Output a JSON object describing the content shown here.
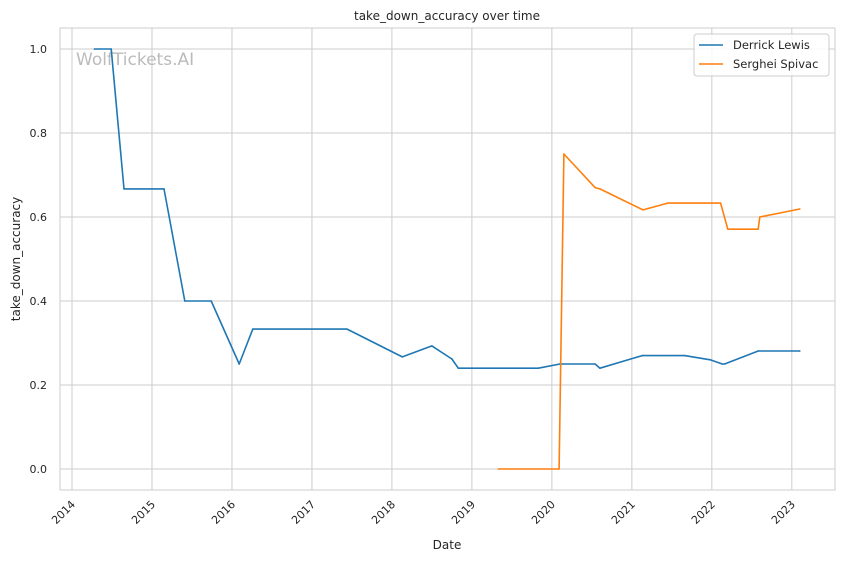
{
  "chart_data": {
    "type": "line",
    "title": "take_down_accuracy over time",
    "xlabel": "Date",
    "ylabel": "take_down_accuracy",
    "xlim": [
      2013.85,
      2023.54
    ],
    "ylim": [
      -0.05,
      1.05
    ],
    "x_ticks": [
      2014,
      2015,
      2016,
      2017,
      2018,
      2019,
      2020,
      2021,
      2022,
      2023
    ],
    "x_tick_labels": [
      "2014",
      "2015",
      "2016",
      "2017",
      "2018",
      "2019",
      "2020",
      "2021",
      "2022",
      "2023"
    ],
    "y_ticks": [
      0.0,
      0.2,
      0.4,
      0.6,
      0.8,
      1.0
    ],
    "y_tick_labels": [
      "0.0",
      "0.2",
      "0.4",
      "0.6",
      "0.8",
      "1.0"
    ],
    "grid": true,
    "legend_position": "top-right",
    "watermark": "WolfTickets.AI",
    "series": [
      {
        "name": "Derrick Lewis",
        "color": "#1f77b4",
        "x": [
          2014.28,
          2014.49,
          2014.65,
          2015.15,
          2015.41,
          2015.74,
          2016.09,
          2016.26,
          2017.44,
          2018.13,
          2018.5,
          2018.75,
          2018.83,
          2019.83,
          2020.1,
          2020.54,
          2020.6,
          2021.13,
          2021.66,
          2021.98,
          2022.13,
          2022.16,
          2022.58,
          2023.1
        ],
        "y": [
          1.0,
          1.0,
          0.667,
          0.667,
          0.4,
          0.4,
          0.25,
          0.333,
          0.333,
          0.267,
          0.293,
          0.262,
          0.24,
          0.24,
          0.25,
          0.25,
          0.24,
          0.27,
          0.27,
          0.26,
          0.25,
          0.25,
          0.281,
          0.281
        ]
      },
      {
        "name": "Serghei Spivac",
        "color": "#ff7f0e",
        "x": [
          2019.33,
          2020.09,
          2020.15,
          2020.54,
          2020.6,
          2021.14,
          2021.45,
          2022.11,
          2022.2,
          2022.58,
          2022.6,
          2023.1
        ],
        "y": [
          0.0,
          0.0,
          0.75,
          0.67,
          0.667,
          0.617,
          0.633,
          0.633,
          0.571,
          0.571,
          0.6,
          0.619
        ]
      }
    ]
  }
}
